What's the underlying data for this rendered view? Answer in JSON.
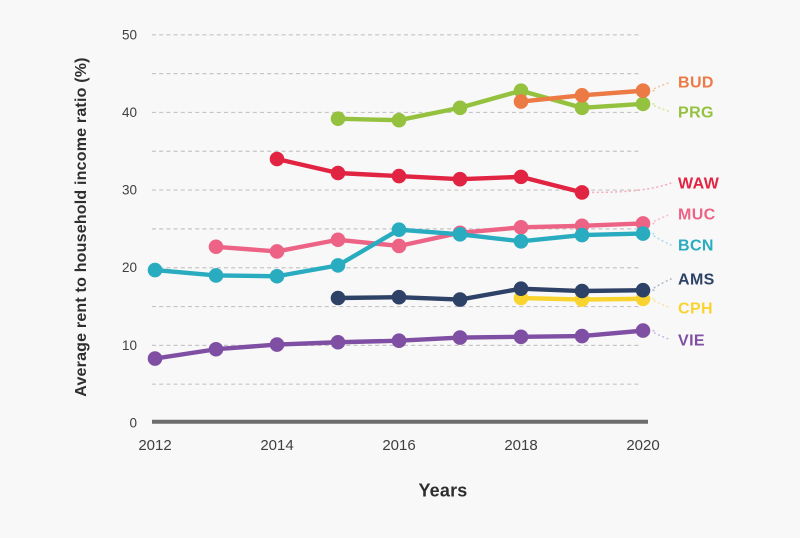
{
  "chart": {
    "y_axis_title": "Average rent to household income ratio (%)",
    "x_axis_title": "Years"
  },
  "chart_data": {
    "type": "line",
    "title": "",
    "xlabel": "Years",
    "ylabel": "Average rent to household income ratio (%)",
    "x_tick_labels": [
      "2012",
      "2014",
      "2016",
      "2018",
      "2020"
    ],
    "x_tick_years": [
      2012,
      2014,
      2016,
      2018,
      2020
    ],
    "y_ticks": [
      0,
      10,
      20,
      30,
      40,
      50
    ],
    "grid_values": [
      5,
      10,
      15,
      20,
      25,
      30,
      35,
      40,
      45,
      50
    ],
    "xlim": [
      2012,
      2020
    ],
    "ylim": [
      0,
      50
    ],
    "grid": "horizontal dashed every 5",
    "legend_position": "direct labels at right edge with dotted leader lines",
    "series": [
      {
        "name": "BUD",
        "color": "#EC7A45",
        "leader_color": "#F6C5A4",
        "years": [
          2018,
          2019,
          2020
        ],
        "values": [
          41.4,
          42.2,
          42.8
        ]
      },
      {
        "name": "PRG",
        "color": "#95C23E",
        "leader_color": "#D4E7A6",
        "years": [
          2015,
          2016,
          2017,
          2018,
          2019,
          2020
        ],
        "values": [
          39.2,
          39.0,
          40.6,
          42.8,
          40.6,
          41.1
        ]
      },
      {
        "name": "WAW",
        "color": "#E22443",
        "leader_color": "#F4AFBD",
        "years": [
          2014,
          2015,
          2016,
          2017,
          2018,
          2019
        ],
        "values": [
          34.0,
          32.2,
          31.8,
          31.4,
          31.7,
          29.7
        ]
      },
      {
        "name": "MUC",
        "color": "#EC6386",
        "leader_color": "#F7C0D0",
        "years": [
          2013,
          2014,
          2015,
          2016,
          2017,
          2018,
          2019,
          2020
        ],
        "values": [
          22.7,
          22.1,
          23.6,
          22.8,
          24.5,
          25.2,
          25.4,
          25.7
        ]
      },
      {
        "name": "BCN",
        "color": "#29ABC0",
        "leader_color": "#AEDEE9",
        "years": [
          2012,
          2013,
          2014,
          2015,
          2016,
          2017,
          2018,
          2019,
          2020
        ],
        "values": [
          19.7,
          19.0,
          18.9,
          20.3,
          24.9,
          24.3,
          23.4,
          24.2,
          24.4
        ]
      },
      {
        "name": "AMS",
        "color": "#2E4166",
        "leader_color": "#B0BACE",
        "years": [
          2015,
          2016,
          2017,
          2018,
          2019,
          2020
        ],
        "values": [
          16.1,
          16.2,
          15.9,
          17.3,
          17.0,
          17.1
        ]
      },
      {
        "name": "CPH",
        "color": "#F9D42F",
        "leader_color": "#F7E69F",
        "years": [
          2018,
          2019,
          2020
        ],
        "values": [
          16.1,
          15.9,
          16.0
        ]
      },
      {
        "name": "VIE",
        "color": "#7E4FA3",
        "leader_color": "#CEBCE0",
        "years": [
          2012,
          2013,
          2014,
          2015,
          2016,
          2017,
          2018,
          2019,
          2020
        ],
        "values": [
          8.3,
          9.5,
          10.1,
          10.4,
          10.6,
          11.0,
          11.1,
          11.2,
          11.9
        ]
      }
    ]
  },
  "colors": {
    "background": "#f8f8f8",
    "gridline": "#c5c5c5",
    "axis_line": "#6d6d6d",
    "tick_text": "#3f3f3f",
    "title_text": "#2e2e2e"
  }
}
